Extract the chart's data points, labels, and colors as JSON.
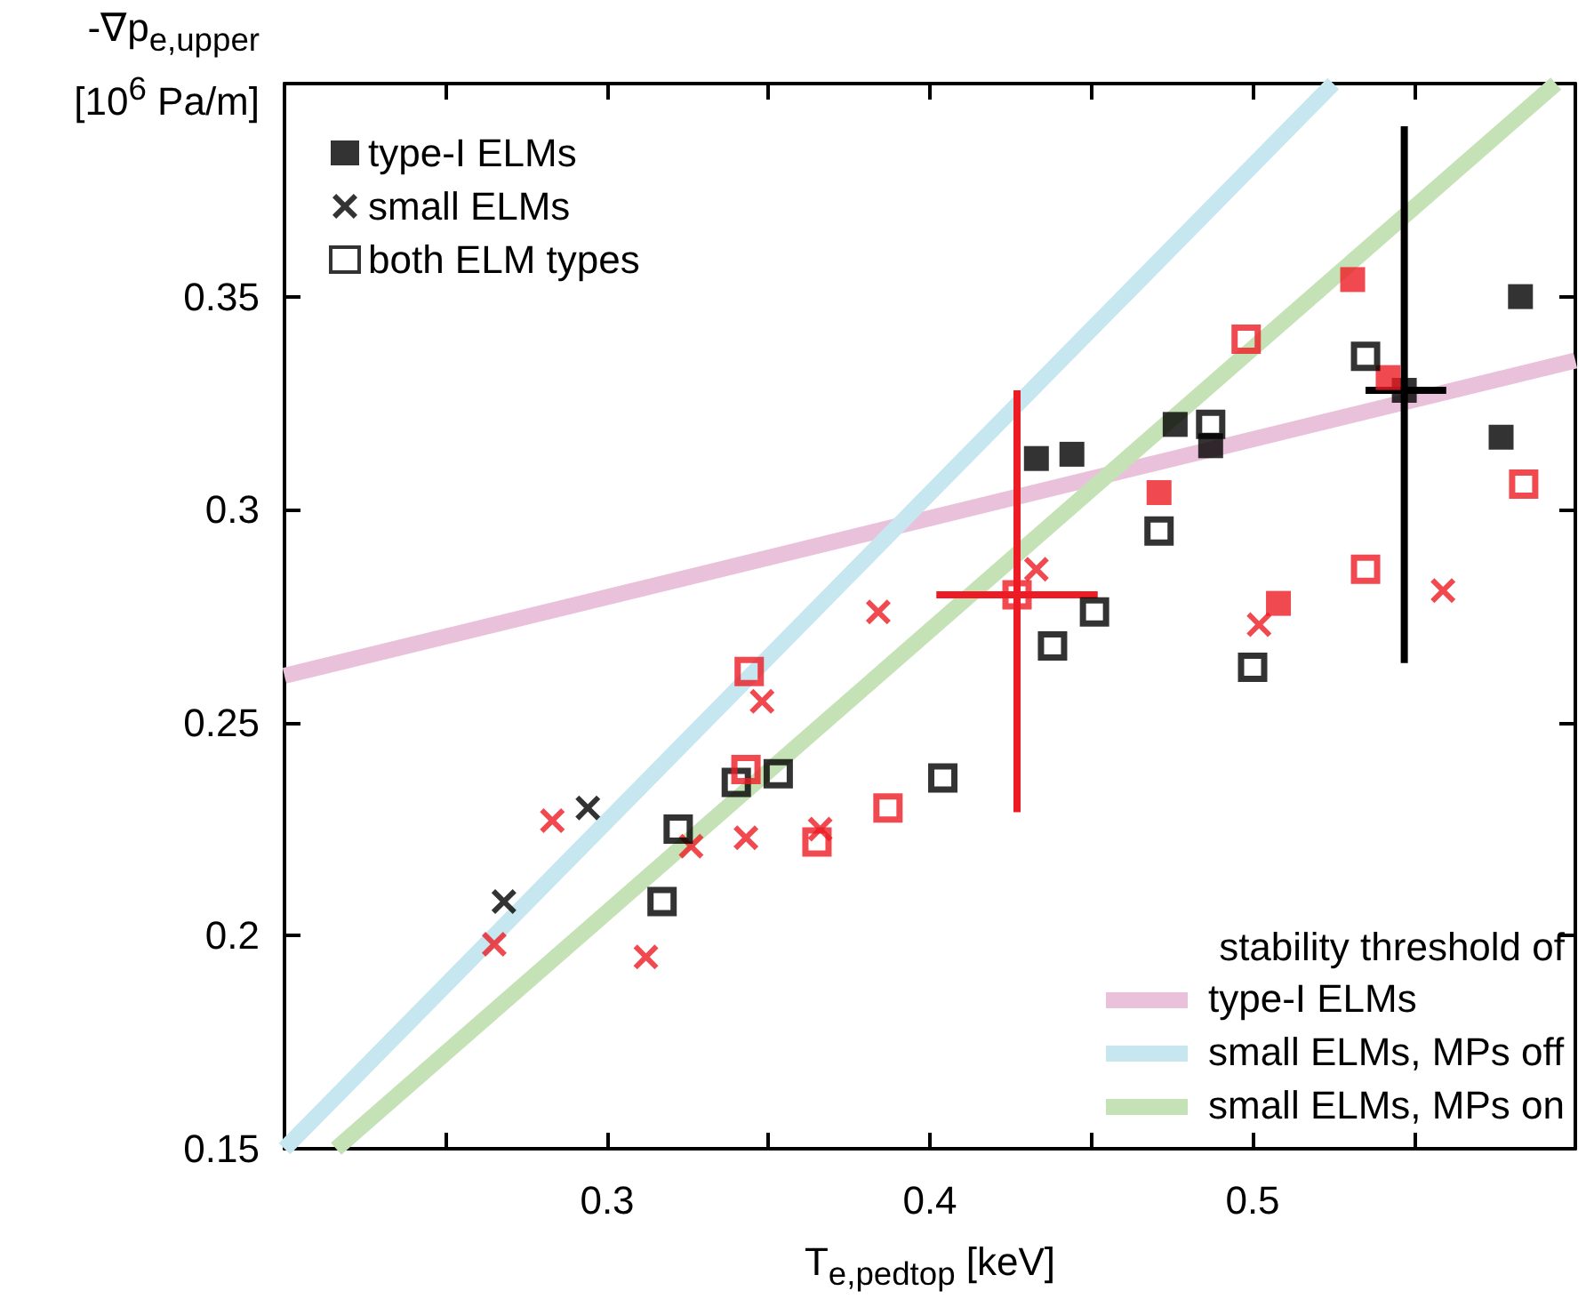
{
  "chart_data": {
    "type": "scatter",
    "xlabel": "T$_{e,pedtop}$ [keV]",
    "ylabel": "-∇p$_{e,upper}$\n[10$^{6}$ Pa/m]",
    "legend_title": "stability threshold of",
    "xlim": [
      0.2,
      0.6
    ],
    "ylim": [
      0.15,
      0.4
    ],
    "xticks": [
      {
        "value": 0.25,
        "label": null
      },
      0.3,
      {
        "value": 0.35,
        "label": null
      },
      0.4,
      {
        "value": 0.45,
        "label": null
      },
      0.5,
      {
        "value": 0.55,
        "label": null
      }
    ],
    "yticks": [
      0.15,
      0.2,
      0.25,
      0.3,
      0.35
    ],
    "grid": false,
    "legend": [
      "top left",
      "bottom right"
    ],
    "series": [
      {
        "name": "type-I ELMs",
        "marker": "square",
        "color": "#000000",
        "x": [
          0.433,
          0.444,
          0.476,
          0.487,
          0.547,
          0.577,
          0.583
        ],
        "values": [
          0.312,
          0.313,
          0.32,
          0.315,
          0.328,
          0.317,
          0.35
        ],
        "errors": [
          null,
          null,
          null,
          null,
          [
            0.264,
            0.39
          ],
          null,
          null
        ],
        "xerrors": [
          null,
          null,
          null,
          null,
          [
            0.535,
            0.56
          ],
          null,
          null
        ]
      },
      {
        "marker": "square",
        "color": "#ed1c24",
        "x": [
          0.471,
          0.508,
          0.531,
          0.542
        ],
        "values": [
          0.304,
          0.278,
          0.354,
          0.331
        ]
      },
      {
        "name": "small ELMs",
        "marker": "cross",
        "color": "#000000",
        "x": [
          0.268,
          0.294
        ],
        "values": [
          0.208,
          0.23
        ]
      },
      {
        "marker": "cross",
        "color": "#ed1c24",
        "x": [
          0.265,
          0.283,
          0.312,
          0.326,
          0.343,
          0.348,
          0.366,
          0.384,
          0.433,
          0.502,
          0.559
        ],
        "values": [
          0.198,
          0.227,
          0.195,
          0.221,
          0.223,
          0.255,
          0.225,
          0.276,
          0.286,
          0.273,
          0.281
        ]
      },
      {
        "name": "both ELM types",
        "marker": "square_open",
        "color": "#000000",
        "x": [
          0.317,
          0.322,
          0.34,
          0.353,
          0.404,
          0.438,
          0.451,
          0.471,
          0.487,
          0.5,
          0.535
        ],
        "values": [
          0.208,
          0.225,
          0.236,
          0.238,
          0.237,
          0.268,
          0.276,
          0.295,
          0.32,
          0.263,
          0.336
        ]
      },
      {
        "marker": "square_open",
        "color": "#ed1c24",
        "x": [
          0.344,
          0.343,
          0.365,
          0.387,
          0.427,
          0.498,
          0.535,
          0.584
        ],
        "values": [
          0.262,
          0.239,
          0.222,
          0.23,
          0.28,
          0.34,
          0.286,
          0.306
        ],
        "errors": [
          null,
          null,
          null,
          null,
          [
            0.229,
            0.328
          ],
          null,
          null,
          null
        ],
        "xerrors": [
          null,
          null,
          null,
          null,
          [
            0.402,
            0.452
          ],
          null,
          null,
          null
        ]
      },
      {
        "name": "type-I ELMs",
        "type": "line",
        "marker": "none",
        "line_style": "solid",
        "color": "#eac1da",
        "x": [
          0.2,
          0.6
        ],
        "values": [
          0.261,
          0.335
        ]
      },
      {
        "name": "small ELMs, MPs off",
        "type": "line",
        "marker": "none",
        "line_style": "solid",
        "color": "#c6e6f0",
        "x": [
          0.2,
          0.525
        ],
        "values": [
          0.15,
          0.4
        ]
      },
      {
        "name": "small ELMs, MPs on",
        "type": "line",
        "marker": "none",
        "line_style": "solid",
        "color": "#c5e2b6",
        "x": [
          0.216,
          0.594
        ],
        "values": [
          0.15,
          0.4
        ]
      }
    ]
  }
}
